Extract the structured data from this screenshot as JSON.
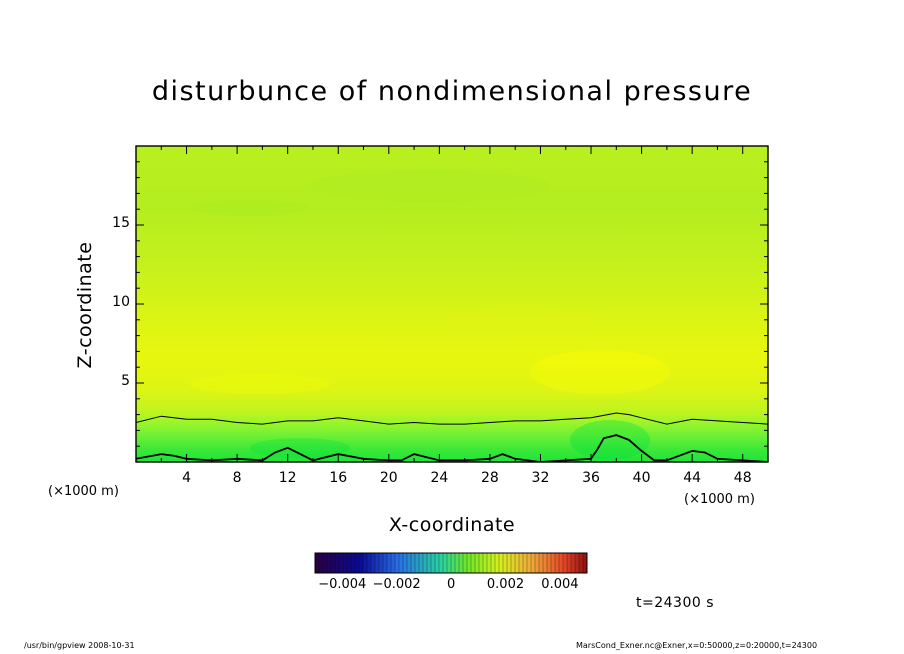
{
  "chart_data": {
    "type": "heatmap",
    "title": "disturbunce of nondimensional pressure",
    "xlabel": "X-coordinate",
    "ylabel": "Z-coordinate",
    "x_unit_left": "(×1000 m)",
    "x_unit_right": "(×1000 m)",
    "xlim": [
      0,
      50
    ],
    "ylim": [
      0,
      20
    ],
    "xticks": [
      "4",
      "8",
      "12",
      "16",
      "20",
      "24",
      "28",
      "32",
      "36",
      "40",
      "44",
      "48"
    ],
    "yticks": [
      "5",
      "10",
      "15"
    ],
    "colorbar": {
      "range": [
        -0.005,
        0.005
      ],
      "tick_labels": [
        "−0.004",
        "−0.002",
        "0",
        "0.002",
        "0.004"
      ]
    },
    "field_levels": [
      {
        "z": 0.0,
        "color": "#1fe33a"
      },
      {
        "z": 0.8,
        "color": "#3ce838"
      },
      {
        "z": 1.6,
        "color": "#6aef35"
      },
      {
        "z": 2.4,
        "color": "#96f52c"
      },
      {
        "z": 3.2,
        "color": "#c0f41f"
      },
      {
        "z": 4.5,
        "color": "#dcf514"
      },
      {
        "z": 6.5,
        "color": "#e8f60e"
      },
      {
        "z": 9.0,
        "color": "#dcf414"
      },
      {
        "z": 12.0,
        "color": "#c8f11b"
      },
      {
        "z": 16.0,
        "color": "#b4ee20"
      },
      {
        "z": 20.0,
        "color": "#b8ef1f"
      }
    ],
    "contours": [
      {
        "x": [
          0,
          2,
          4,
          6,
          8,
          10,
          12,
          14,
          16,
          18,
          20,
          22,
          24,
          26,
          28,
          30,
          32,
          34,
          36,
          38,
          39,
          40,
          42,
          44,
          46,
          48,
          50
        ],
        "z": [
          2.5,
          2.9,
          2.7,
          2.7,
          2.5,
          2.4,
          2.6,
          2.6,
          2.8,
          2.6,
          2.4,
          2.5,
          2.4,
          2.4,
          2.5,
          2.6,
          2.6,
          2.7,
          2.8,
          3.1,
          3.0,
          2.8,
          2.4,
          2.7,
          2.6,
          2.5,
          2.4
        ]
      },
      {
        "x": [
          0,
          2,
          3,
          4,
          6,
          8,
          10,
          11,
          12,
          13,
          14,
          16,
          18,
          20,
          21,
          22,
          23,
          24,
          26,
          28,
          29,
          30,
          32,
          34,
          36,
          36.5,
          37,
          38,
          39,
          40,
          41,
          42,
          43,
          44,
          45,
          46,
          48,
          50
        ],
        "z": [
          0.2,
          0.5,
          0.4,
          0.2,
          0.1,
          0.2,
          0.1,
          0.6,
          0.9,
          0.5,
          0.1,
          0.5,
          0.2,
          0.1,
          0.1,
          0.5,
          0.3,
          0.1,
          0.1,
          0.2,
          0.5,
          0.2,
          0.0,
          0.1,
          0.2,
          0.8,
          1.5,
          1.7,
          1.4,
          0.7,
          0.1,
          0.1,
          0.4,
          0.7,
          0.6,
          0.2,
          0.1,
          0.0
        ]
      }
    ],
    "time_label": "t=24300 s",
    "footer_left": "/usr/bin/gpview   2008-10-31",
    "footer_right": "MarsCond_Exner.nc@Exner,x=0:50000,z=0:20000,t=24300"
  }
}
